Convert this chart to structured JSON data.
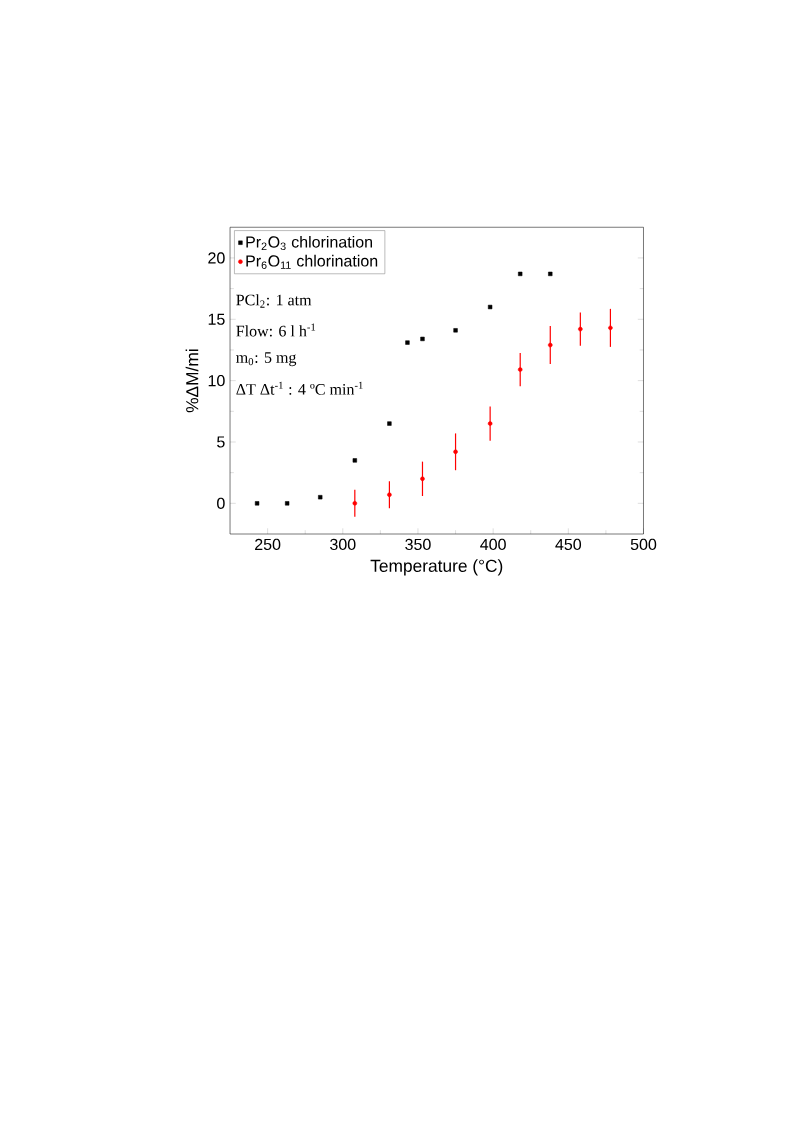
{
  "chart_data": {
    "type": "scatter",
    "xlabel": "Temperature (°C)",
    "ylabel": "%ΔM/mi",
    "xlim": [
      225,
      500
    ],
    "ylim": [
      -2.5,
      22.5
    ],
    "xticks": [
      250,
      300,
      350,
      400,
      450,
      500
    ],
    "yticks": [
      0,
      5,
      10,
      15,
      20
    ],
    "legend": "top left",
    "grid": false,
    "annotations": [
      "PCl$_{2}$: 1 atm",
      "Flow: 6 l h$^{-1}$",
      "m$_{0}$: 5 mg",
      "ΔT Δt$^{-1}$ : 4 ºC min$^{-1}$"
    ],
    "series": [
      {
        "name": "Pr$_{2}$O$_{3}$ chlorination",
        "color": "#000000",
        "marker": "square",
        "x": [
          243,
          263,
          285,
          308,
          331,
          343,
          353,
          375,
          398,
          418,
          438
        ],
        "values": [
          0,
          0,
          0.5,
          3.5,
          6.5,
          13.1,
          13.4,
          14.1,
          16.0,
          18.7,
          18.7
        ]
      },
      {
        "name": "Pr$_{6}$O$_{11}$ chlorination",
        "color": "#ff0000",
        "marker": "circle",
        "x": [
          308,
          331,
          353,
          375,
          398,
          418,
          438,
          458,
          478
        ],
        "values": [
          0,
          0.7,
          2.0,
          4.2,
          6.5,
          10.9,
          12.9,
          14.2,
          14.3
        ],
        "errors": [
          1.1,
          1.1,
          1.4,
          1.5,
          1.4,
          1.35,
          1.55,
          1.35,
          1.55
        ]
      }
    ]
  }
}
